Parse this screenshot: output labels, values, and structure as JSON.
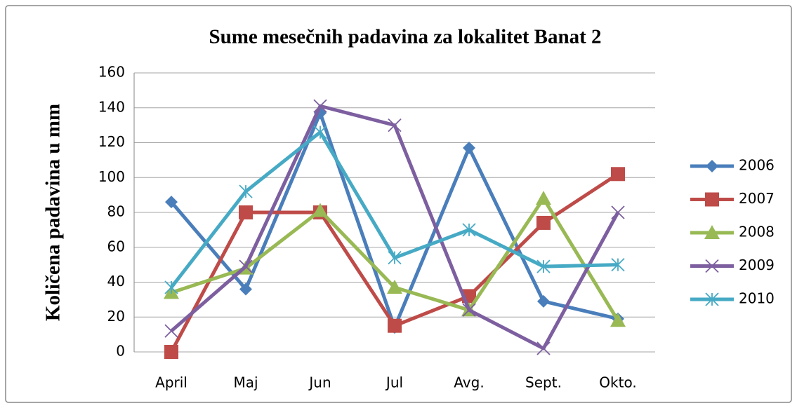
{
  "chart_data": {
    "type": "line",
    "title": "Sume mesečnih padavina za lokalitet Banat 2",
    "y_label": "Količena padavina u mm",
    "categories": [
      "April",
      "Maj",
      "Jun",
      "Jul",
      "Avg.",
      "Sept.",
      "Okto."
    ],
    "series": [
      {
        "name": "2006",
        "color": "#4a7ebb",
        "marker": "diamond",
        "values": [
          86,
          36,
          137,
          14,
          117,
          29,
          19
        ]
      },
      {
        "name": "2007",
        "color": "#be4b48",
        "marker": "square",
        "values": [
          0,
          80,
          80,
          15,
          32,
          74,
          102
        ]
      },
      {
        "name": "2008",
        "color": "#98b954",
        "marker": "triangle",
        "values": [
          34,
          48,
          81,
          37,
          24,
          88,
          18
        ]
      },
      {
        "name": "2009",
        "color": "#7d5fa0",
        "marker": "x",
        "values": [
          12,
          49,
          141,
          130,
          24,
          2,
          80
        ]
      },
      {
        "name": "2010",
        "color": "#46aac5",
        "marker": "star",
        "values": [
          37,
          92,
          126,
          54,
          70,
          49,
          50
        ]
      }
    ],
    "ylim": [
      0,
      160
    ],
    "yticks": [
      0,
      20,
      40,
      60,
      80,
      100,
      120,
      140,
      160
    ],
    "grid": true,
    "legend": "right"
  }
}
